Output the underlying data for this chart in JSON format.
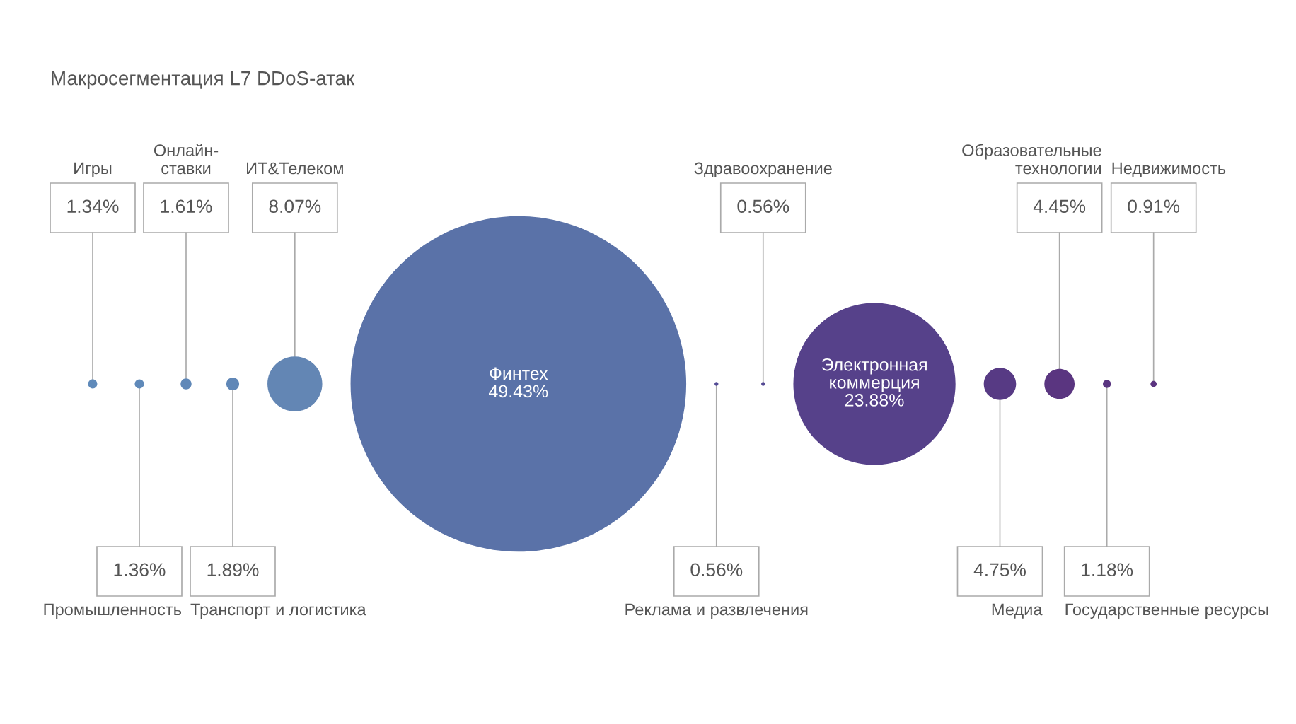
{
  "chart_data": {
    "type": "other",
    "title": "Макросегментация L7 DDoS-атак",
    "categories": [
      "Игры",
      "Промышленность",
      "Онлайн-\nставки",
      "Транспорт и логистика",
      "ИТ&Телеком",
      "Финтех",
      "Реклама и развлечения",
      "Здравоохранение",
      "Электронная\nкоммерция",
      "Медиа",
      "Образовательные\nтехнологии",
      "Государственные ресурсы",
      "Недвижимость"
    ],
    "values": [
      1.34,
      1.36,
      1.61,
      1.89,
      8.07,
      49.43,
      0.56,
      0.56,
      23.88,
      4.75,
      4.45,
      1.18,
      0.91
    ],
    "value_labels": [
      "1.34%",
      "1.36%",
      "1.61%",
      "1.89%",
      "8.07%",
      "49.43%",
      "0.56%",
      "0.56%",
      "23.88%",
      "4.75%",
      "4.45%",
      "1.18%",
      "0.91%"
    ],
    "colors": [
      "#5f8aba",
      "#5f89b9",
      "#6088b8",
      "#6087b7",
      "#6386b4",
      "#5a72a8",
      "#544c96",
      "#554a94",
      "#56418a",
      "#573a84",
      "#5a3580",
      "#5a3580",
      "#5b3480"
    ]
  }
}
